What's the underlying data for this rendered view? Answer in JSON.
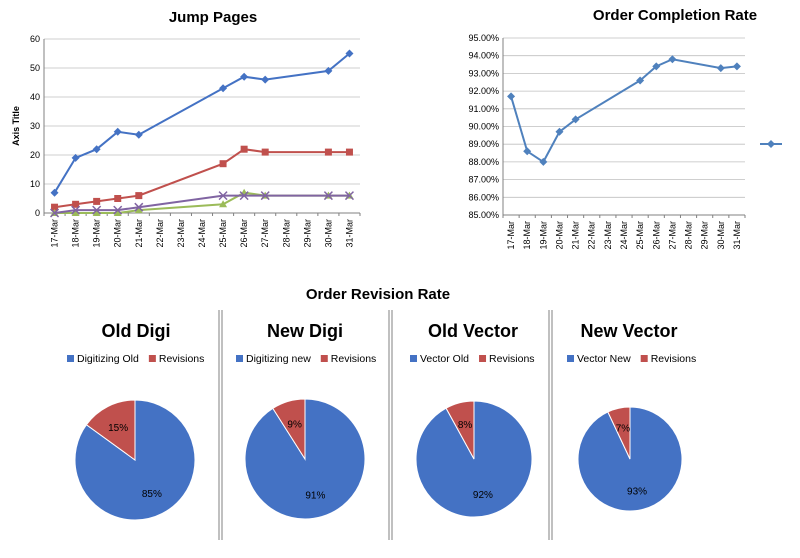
{
  "colors": {
    "blue": "#4472C4",
    "red": "#C0504D",
    "green": "#9BBB59",
    "purple": "#8064A2",
    "lineblue": "#4F81BD",
    "grid": "#BFBFBF",
    "axis": "#808080"
  },
  "chart_data": [
    {
      "type": "line",
      "title": "Jump Pages",
      "xlabel": "",
      "ylabel": "Axis Title",
      "categories": [
        "17-Mar",
        "18-Mar",
        "19-Mar",
        "20-Mar",
        "21-Mar",
        "22-Mar",
        "23-Mar",
        "24-Mar",
        "25-Mar",
        "26-Mar",
        "27-Mar",
        "28-Mar",
        "29-Mar",
        "30-Mar",
        "31-Mar"
      ],
      "ylim": [
        0,
        60
      ],
      "yticks": [
        "0",
        "10",
        "20",
        "30",
        "40",
        "50",
        "60"
      ],
      "ytick_values": [
        0,
        10,
        20,
        30,
        40,
        50,
        60
      ],
      "grid": true,
      "legend": "none",
      "series": [
        {
          "color": "blue",
          "marker": "diamond",
          "values": [
            7,
            19,
            22,
            28,
            27,
            null,
            null,
            null,
            43,
            47,
            46,
            null,
            null,
            49,
            55
          ]
        },
        {
          "color": "red",
          "marker": "square",
          "values": [
            2,
            3,
            4,
            5,
            6,
            null,
            null,
            null,
            17,
            22,
            21,
            null,
            null,
            21,
            21
          ]
        },
        {
          "color": "green",
          "marker": "triangle",
          "values": [
            0,
            0,
            0,
            0,
            1,
            null,
            null,
            null,
            3,
            7,
            6,
            null,
            null,
            6,
            6
          ]
        },
        {
          "color": "purple",
          "marker": "x",
          "values": [
            0,
            1,
            1,
            1,
            2,
            null,
            null,
            null,
            6,
            6,
            6,
            null,
            null,
            6,
            6
          ]
        }
      ]
    },
    {
      "type": "line",
      "title": "Order Completion Rate",
      "xlabel": "",
      "ylabel": "",
      "categories": [
        "17-Mar",
        "18-Mar",
        "19-Mar",
        "20-Mar",
        "21-Mar",
        "22-Mar",
        "23-Mar",
        "24-Mar",
        "25-Mar",
        "26-Mar",
        "27-Mar",
        "28-Mar",
        "29-Mar",
        "30-Mar",
        "31-Mar"
      ],
      "ylim": [
        85,
        95
      ],
      "yticks": [
        "85.00%",
        "86.00%",
        "87.00%",
        "88.00%",
        "89.00%",
        "90.00%",
        "91.00%",
        "92.00%",
        "93.00%",
        "94.00%",
        "95.00%"
      ],
      "ytick_values": [
        85,
        86,
        87,
        88,
        89,
        90,
        91,
        92,
        93,
        94,
        95
      ],
      "grid": true,
      "legend": "right",
      "series": [
        {
          "color": "lineblue",
          "marker": "diamond",
          "values": [
            91.7,
            88.6,
            88.0,
            89.7,
            90.4,
            null,
            null,
            null,
            92.6,
            93.4,
            93.8,
            null,
            null,
            93.3,
            93.4
          ]
        }
      ]
    },
    {
      "type": "pie",
      "title": "Old Digi",
      "labels": [
        "Digitizing Old",
        "Revisions"
      ],
      "values": [
        85,
        15
      ],
      "data_labels": [
        "85%",
        "15%"
      ],
      "legend": "top"
    },
    {
      "type": "pie",
      "title": "New Digi",
      "labels": [
        "Digitizing new",
        "Revisions"
      ],
      "values": [
        91,
        9
      ],
      "data_labels": [
        "91%",
        "9%"
      ],
      "legend": "top"
    },
    {
      "type": "pie",
      "title": "Old Vector",
      "labels": [
        "Vector Old",
        "Revisions"
      ],
      "values": [
        92,
        8
      ],
      "data_labels": [
        "92%",
        "8%"
      ],
      "legend": "top"
    },
    {
      "type": "pie",
      "title": "New Vector",
      "labels": [
        "Vector New",
        "Revisions"
      ],
      "values": [
        93,
        7
      ],
      "data_labels": [
        "93%",
        "7%"
      ],
      "legend": "top"
    }
  ],
  "section_title": "Order Revision Rate"
}
